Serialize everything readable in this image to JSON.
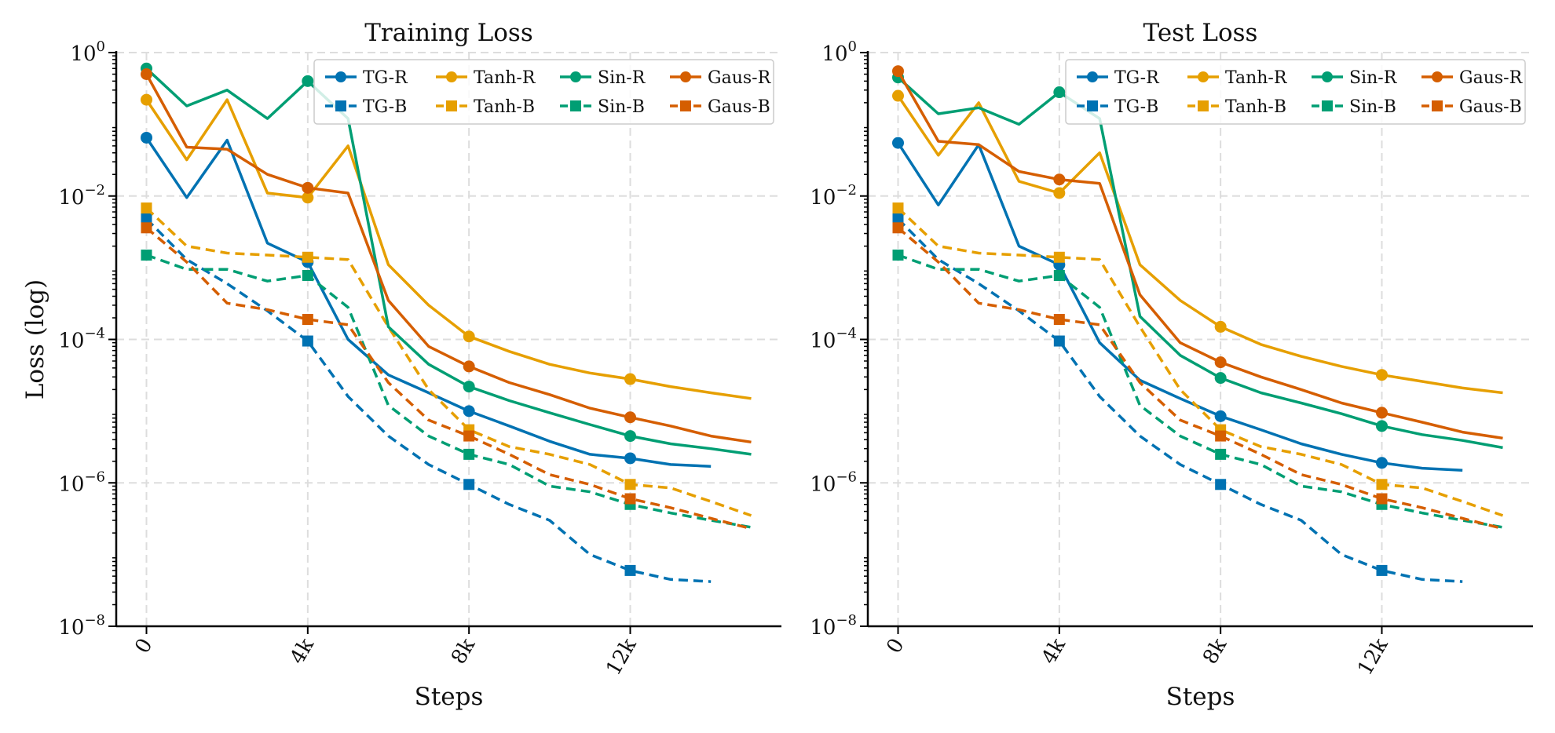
{
  "chart_data": [
    {
      "type": "line",
      "title": "Training Loss",
      "xlabel": "Steps",
      "ylabel": "Loss (log)",
      "yscale": "log",
      "ylim": [
        1e-08,
        1
      ],
      "xlim": [
        -750,
        15750
      ],
      "xticks": [
        0,
        4000,
        8000,
        12000
      ],
      "xtick_labels": [
        "0",
        "4k",
        "8k",
        "12k"
      ],
      "ytick_exponents": [
        "0",
        "−2",
        "−4",
        "−6",
        "−8"
      ],
      "ytick_base": "10",
      "grid": true,
      "legend": "top-right",
      "x": [
        0,
        1000,
        2000,
        3000,
        4000,
        5000,
        6000,
        7000,
        8000,
        9000,
        10000,
        11000,
        12000,
        13000,
        14000,
        15000
      ],
      "series": [
        {
          "name": "TG-R",
          "color": "#0072b2",
          "style": "solid",
          "marker": "circle",
          "values": [
            0.065,
            0.0095,
            0.06,
            0.0022,
            0.0012,
            0.0001,
            3.2e-05,
            1.8e-05,
            1e-05,
            6.2e-06,
            3.8e-06,
            2.5e-06,
            2.2e-06,
            1.8e-06,
            1.7e-06,
            null
          ]
        },
        {
          "name": "TG-B",
          "color": "#0072b2",
          "style": "dashed",
          "marker": "square",
          "values": [
            0.0048,
            0.0013,
            0.0006,
            0.00025,
            9.5e-05,
            1.6e-05,
            4.5e-06,
            1.8e-06,
            9.5e-07,
            5e-07,
            3e-07,
            1e-07,
            6e-08,
            4.5e-08,
            4.2e-08,
            null
          ]
        },
        {
          "name": "Tanh-R",
          "color": "#e69f00",
          "style": "solid",
          "marker": "circle",
          "values": [
            0.22,
            0.032,
            0.22,
            0.011,
            0.0095,
            0.05,
            0.0011,
            0.0003,
            0.00011,
            6.8e-05,
            4.5e-05,
            3.4e-05,
            2.8e-05,
            2.2e-05,
            1.8e-05,
            1.5e-05
          ]
        },
        {
          "name": "Tanh-B",
          "color": "#e69f00",
          "style": "dashed",
          "marker": "square",
          "values": [
            0.0068,
            0.002,
            0.0016,
            0.0015,
            0.0014,
            0.0013,
            0.00015,
            2e-05,
            5.5e-06,
            3.2e-06,
            2.5e-06,
            1.8e-06,
            9.5e-07,
            8.5e-07,
            5.5e-07,
            3.5e-07
          ]
        },
        {
          "name": "Sin-R",
          "color": "#009e73",
          "style": "solid",
          "marker": "circle",
          "values": [
            0.6,
            0.18,
            0.3,
            0.12,
            0.4,
            0.12,
            0.00015,
            4.5e-05,
            2.2e-05,
            1.4e-05,
            9.5e-06,
            6.5e-06,
            4.5e-06,
            3.5e-06,
            3e-06,
            2.5e-06
          ]
        },
        {
          "name": "Sin-B",
          "color": "#009e73",
          "style": "dashed",
          "marker": "square",
          "values": [
            0.0015,
            0.00095,
            0.00095,
            0.00065,
            0.00078,
            0.00028,
            1.2e-05,
            4.5e-06,
            2.5e-06,
            1.8e-06,
            9e-07,
            7.5e-07,
            5e-07,
            3.8e-07,
            3e-07,
            2.4e-07
          ]
        },
        {
          "name": "Gaus-R",
          "color": "#d55e00",
          "style": "solid",
          "marker": "circle",
          "values": [
            0.5,
            0.048,
            0.045,
            0.02,
            0.013,
            0.011,
            0.00035,
            8e-05,
            4.2e-05,
            2.5e-05,
            1.7e-05,
            1.1e-05,
            8.2e-06,
            6.2e-06,
            4.5e-06,
            3.7e-06
          ]
        },
        {
          "name": "Gaus-B",
          "color": "#d55e00",
          "style": "dashed",
          "marker": "square",
          "values": [
            0.0036,
            0.0012,
            0.00032,
            0.00026,
            0.00019,
            0.00016,
            2.5e-05,
            7.5e-06,
            4.5e-06,
            2.5e-06,
            1.3e-06,
            9.5e-07,
            6e-07,
            4.5e-07,
            3.2e-07,
            2.3e-07
          ]
        }
      ],
      "markers_at": [
        0,
        4000,
        8000,
        12000
      ]
    },
    {
      "type": "line",
      "title": "Test Loss",
      "xlabel": "Steps",
      "ylabel": "",
      "yscale": "log",
      "ylim": [
        1e-08,
        1
      ],
      "xlim": [
        -750,
        15750
      ],
      "xticks": [
        0,
        4000,
        8000,
        12000
      ],
      "xtick_labels": [
        "0",
        "4k",
        "8k",
        "12k"
      ],
      "ytick_exponents": [
        "0",
        "−2",
        "−4",
        "−6",
        "−8"
      ],
      "ytick_base": "10",
      "grid": true,
      "legend": "top-right",
      "x": [
        0,
        1000,
        2000,
        3000,
        4000,
        5000,
        6000,
        7000,
        8000,
        9000,
        10000,
        11000,
        12000,
        13000,
        14000,
        15000
      ],
      "series": [
        {
          "name": "TG-R",
          "color": "#0072b2",
          "style": "solid",
          "marker": "circle",
          "values": [
            0.055,
            0.0075,
            0.052,
            0.002,
            0.0011,
            9e-05,
            2.7e-05,
            1.5e-05,
            8.5e-06,
            5.5e-06,
            3.5e-06,
            2.5e-06,
            1.9e-06,
            1.6e-06,
            1.5e-06,
            null
          ]
        },
        {
          "name": "TG-B",
          "color": "#0072b2",
          "style": "dashed",
          "marker": "square",
          "values": [
            0.0048,
            0.0013,
            0.0006,
            0.00025,
            9.5e-05,
            1.6e-05,
            4.5e-06,
            1.8e-06,
            9.5e-07,
            5e-07,
            3e-07,
            1e-07,
            6e-08,
            4.5e-08,
            4.2e-08,
            null
          ]
        },
        {
          "name": "Tanh-R",
          "color": "#e69f00",
          "style": "solid",
          "marker": "circle",
          "values": [
            0.25,
            0.037,
            0.2,
            0.016,
            0.011,
            0.04,
            0.0011,
            0.00035,
            0.00015,
            8.5e-05,
            5.8e-05,
            4.2e-05,
            3.2e-05,
            2.6e-05,
            2.1e-05,
            1.8e-05
          ]
        },
        {
          "name": "Tanh-B",
          "color": "#e69f00",
          "style": "dashed",
          "marker": "square",
          "values": [
            0.0068,
            0.002,
            0.0016,
            0.0015,
            0.0014,
            0.0013,
            0.00015,
            2e-05,
            5.5e-06,
            3.2e-06,
            2.5e-06,
            1.8e-06,
            9.5e-07,
            8.5e-07,
            5.5e-07,
            3.5e-07
          ]
        },
        {
          "name": "Sin-R",
          "color": "#009e73",
          "style": "solid",
          "marker": "circle",
          "values": [
            0.45,
            0.14,
            0.17,
            0.1,
            0.28,
            0.12,
            0.00021,
            6e-05,
            2.9e-05,
            1.8e-05,
            1.3e-05,
            9.2e-06,
            6.2e-06,
            4.7e-06,
            3.9e-06,
            3.1e-06
          ]
        },
        {
          "name": "Sin-B",
          "color": "#009e73",
          "style": "dashed",
          "marker": "square",
          "values": [
            0.0015,
            0.00095,
            0.00095,
            0.00065,
            0.00078,
            0.00028,
            1.2e-05,
            4.5e-06,
            2.5e-06,
            1.8e-06,
            9e-07,
            7.5e-07,
            5e-07,
            3.8e-07,
            3e-07,
            2.4e-07
          ]
        },
        {
          "name": "Gaus-R",
          "color": "#d55e00",
          "style": "solid",
          "marker": "circle",
          "values": [
            0.55,
            0.058,
            0.052,
            0.022,
            0.017,
            0.015,
            0.00042,
            9e-05,
            4.8e-05,
            3e-05,
            2e-05,
            1.3e-05,
            9.5e-06,
            7e-06,
            5.1e-06,
            4.2e-06
          ]
        },
        {
          "name": "Gaus-B",
          "color": "#d55e00",
          "style": "dashed",
          "marker": "square",
          "values": [
            0.0036,
            0.0012,
            0.00032,
            0.00026,
            0.00019,
            0.00016,
            2.5e-05,
            7.5e-06,
            4.5e-06,
            2.5e-06,
            1.3e-06,
            9.5e-07,
            6e-07,
            4.5e-07,
            3.2e-07,
            2.3e-07
          ]
        }
      ],
      "markers_at": [
        0,
        4000,
        8000,
        12000
      ]
    }
  ]
}
